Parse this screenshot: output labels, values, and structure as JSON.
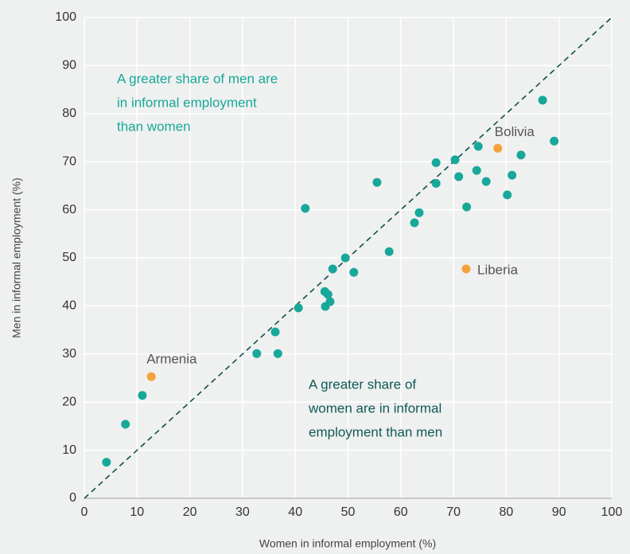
{
  "chart_data": {
    "type": "scatter",
    "xlabel": "Women in informal employment (%)",
    "ylabel": "Men in informal employment (%)",
    "xlim": [
      0,
      100
    ],
    "ylim": [
      0,
      100
    ],
    "xticks": [
      0,
      10,
      20,
      30,
      40,
      50,
      60,
      70,
      80,
      90,
      100
    ],
    "yticks": [
      0,
      10,
      20,
      30,
      40,
      50,
      60,
      70,
      80,
      90,
      100
    ],
    "grid": true,
    "diagonal": true,
    "x": [
      4.2,
      7.8,
      11.0,
      12.7,
      32.7,
      36.7,
      36.2,
      40.6,
      41.9,
      45.6,
      46.2,
      45.7,
      46.6,
      47.1,
      49.5,
      51.1,
      55.5,
      57.8,
      62.6,
      63.5,
      66.7,
      66.7,
      70.3,
      71.0,
      74.7,
      74.4,
      76.2,
      72.5,
      72.4,
      78.4,
      82.8,
      81.1,
      80.2,
      86.9,
      89.1
    ],
    "y": [
      7.5,
      15.4,
      21.4,
      25.3,
      30.1,
      30.1,
      34.6,
      39.6,
      60.3,
      43.0,
      42.4,
      39.9,
      40.9,
      47.7,
      50.0,
      47.0,
      65.7,
      51.3,
      57.3,
      59.4,
      69.8,
      65.5,
      70.4,
      66.9,
      73.2,
      68.2,
      65.9,
      60.6,
      47.7,
      72.8,
      71.4,
      67.2,
      63.1,
      82.8,
      74.3
    ],
    "colors": [
      "#17a89a",
      "#17a89a",
      "#17a89a",
      "#f5a23c",
      "#17a89a",
      "#17a89a",
      "#17a89a",
      "#17a89a",
      "#17a89a",
      "#17a89a",
      "#17a89a",
      "#17a89a",
      "#17a89a",
      "#17a89a",
      "#17a89a",
      "#17a89a",
      "#17a89a",
      "#17a89a",
      "#17a89a",
      "#17a89a",
      "#17a89a",
      "#17a89a",
      "#17a89a",
      "#17a89a",
      "#17a89a",
      "#17a89a",
      "#17a89a",
      "#17a89a",
      "#f5a23c",
      "#f5a23c",
      "#17a89a",
      "#17a89a",
      "#17a89a",
      "#17a89a",
      "#17a89a"
    ],
    "point_labels": [
      null,
      null,
      null,
      "Armenia",
      null,
      null,
      null,
      null,
      null,
      null,
      null,
      null,
      null,
      null,
      null,
      null,
      null,
      null,
      null,
      null,
      null,
      null,
      null,
      null,
      null,
      null,
      null,
      null,
      "Liberia",
      "Bolivia",
      null,
      null,
      null,
      null,
      null
    ],
    "annotations": [
      [
        "A greater share of men are",
        "in informal employment",
        "than women"
      ],
      [
        "A greater share of",
        "women are in informal",
        "employment than men"
      ]
    ]
  }
}
